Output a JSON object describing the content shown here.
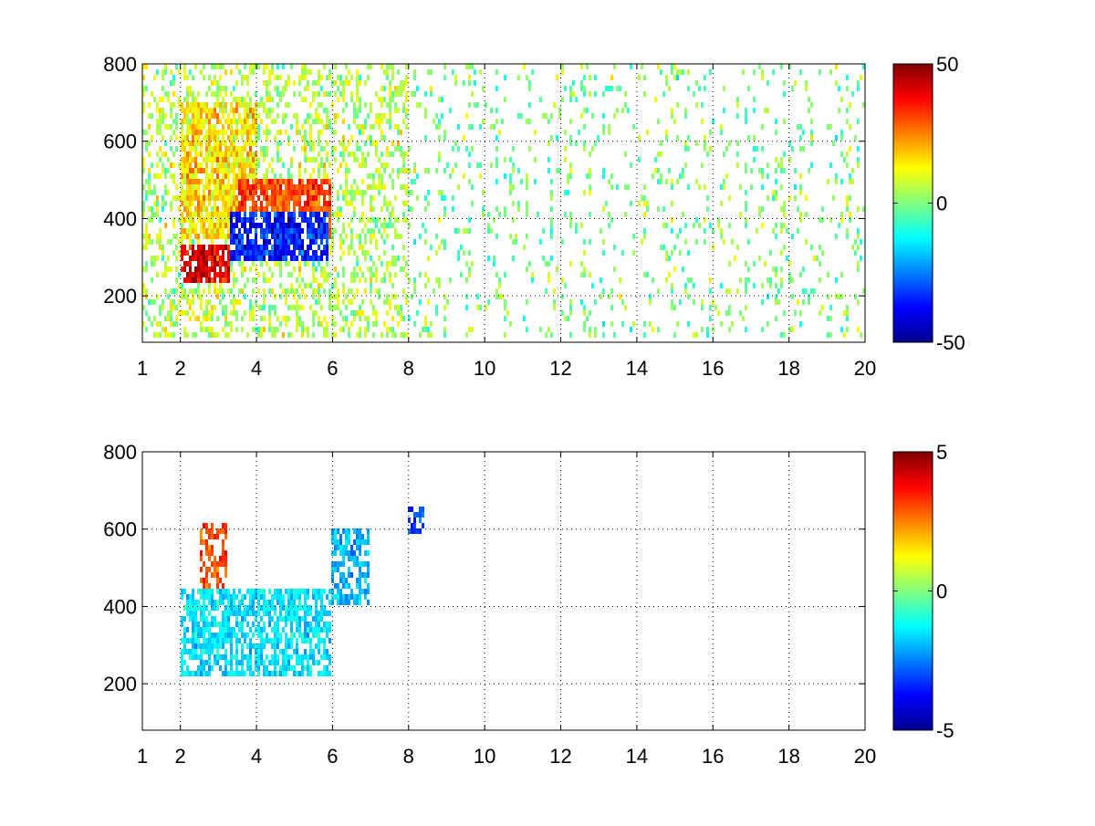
{
  "chart_data": [
    {
      "type": "heatmap",
      "title": "",
      "xlabel": "",
      "ylabel": "",
      "xlim": [
        1,
        20
      ],
      "ylim": [
        80,
        800
      ],
      "x_ticks": [
        1,
        2,
        4,
        6,
        8,
        10,
        12,
        14,
        16,
        18,
        20
      ],
      "y_ticks": [
        200,
        400,
        600,
        800
      ],
      "grid": "on (dotted)",
      "colormap": "jet",
      "clim": [
        -50,
        50
      ],
      "colorbar_ticks": [
        -50,
        0,
        50
      ],
      "background": "white where no data",
      "description_regions": [
        {
          "x": [
            2,
            3.3
          ],
          "y": [
            240,
            330
          ],
          "value": 40
        },
        {
          "x": [
            3.3,
            5.9
          ],
          "y": [
            290,
            420
          ],
          "value": -35
        },
        {
          "x": [
            3.5,
            6
          ],
          "y": [
            330,
            500
          ],
          "value": 30
        },
        {
          "x": [
            2,
            4
          ],
          "y": [
            350,
            700
          ],
          "value": 15
        },
        {
          "x": [
            1,
            8
          ],
          "y": [
            80,
            800
          ],
          "value": 5
        },
        {
          "x": [
            6,
            7.2
          ],
          "y": [
            380,
            600
          ],
          "value": 8
        },
        {
          "x": [
            7,
            20
          ],
          "y": [
            80,
            800
          ],
          "value": 0
        }
      ]
    },
    {
      "type": "heatmap",
      "title": "",
      "xlabel": "",
      "ylabel": "",
      "xlim": [
        1,
        20
      ],
      "ylim": [
        80,
        800
      ],
      "x_ticks": [
        1,
        2,
        4,
        6,
        8,
        10,
        12,
        14,
        16,
        18,
        20
      ],
      "y_ticks": [
        200,
        400,
        600,
        800
      ],
      "grid": "on (dotted)",
      "colormap": "jet",
      "clim": [
        -5,
        5
      ],
      "colorbar_ticks": [
        -5,
        0,
        5
      ],
      "background": "white where no data",
      "description_regions": [
        {
          "x": [
            2,
            6
          ],
          "y": [
            220,
            450
          ],
          "value": -1.5
        },
        {
          "x": [
            2.5,
            3.2
          ],
          "y": [
            380,
            620
          ],
          "value": 3
        },
        {
          "x": [
            6,
            7
          ],
          "y": [
            400,
            600
          ],
          "value": -2
        },
        {
          "x": [
            8,
            8.4
          ],
          "y": [
            590,
            660
          ],
          "value": -3
        }
      ]
    }
  ]
}
